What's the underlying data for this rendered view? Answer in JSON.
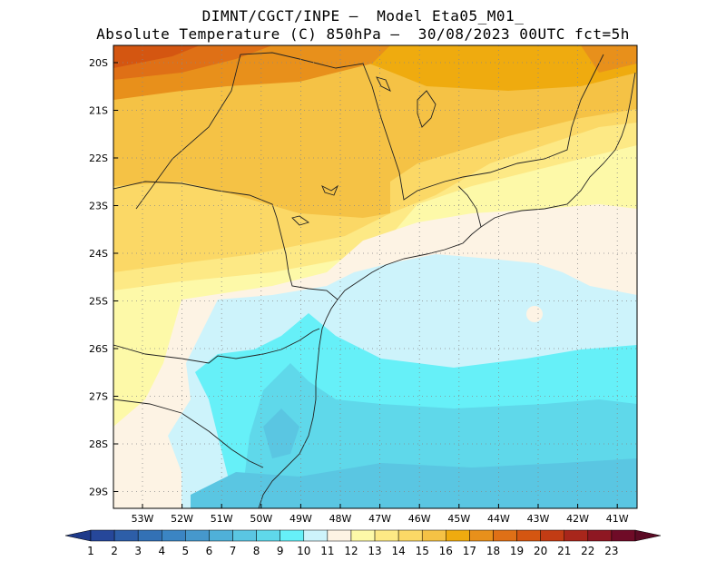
{
  "title": {
    "line1": "DIMNT/CGCT/INPE –  Model Eta05_M01_",
    "line2": "Absolute Temperature (C) 850hPa –  30/08/2023 00UTC fct=5h"
  },
  "map": {
    "lat_labels": [
      "20S",
      "21S",
      "22S",
      "23S",
      "24S",
      "25S",
      "26S",
      "27S",
      "28S",
      "29S"
    ],
    "lon_labels": [
      "53W",
      "52W",
      "51W",
      "50W",
      "49W",
      "48W",
      "47W",
      "46W",
      "45W",
      "44W",
      "43W",
      "42W",
      "41W"
    ],
    "grid": "dotted",
    "field_summary": [
      {
        "region": "northwest (interior)",
        "value_c": "17-19"
      },
      {
        "region": "central-west",
        "value_c": "14-16"
      },
      {
        "region": "north-east coast",
        "value_c": "12-13"
      },
      {
        "region": "ocean south of 25S",
        "value_c": "9-11"
      }
    ]
  },
  "colorbar": {
    "labels": [
      "1",
      "2",
      "3",
      "4",
      "5",
      "6",
      "7",
      "8",
      "9",
      "10",
      "11",
      "12",
      "13",
      "14",
      "15",
      "16",
      "17",
      "18",
      "19",
      "20",
      "21",
      "22",
      "23"
    ],
    "colors": [
      "#26479a",
      "#2d5ea8",
      "#3371b5",
      "#3b85c3",
      "#4698cc",
      "#4fb0d8",
      "#5ac6e2",
      "#5fd8ea",
      "#66f0f8",
      "#cdf3fb",
      "#fdf3e4",
      "#fdf9a8",
      "#fde985",
      "#fbd866",
      "#f5c245",
      "#efab0f",
      "#e8901b",
      "#df7016",
      "#d45611",
      "#c23c14",
      "#a8261b",
      "#8e1722",
      "#6f0b27"
    ],
    "left_arrow_color": "#1e3a8a",
    "right_arrow_color": "#5b0a24"
  }
}
